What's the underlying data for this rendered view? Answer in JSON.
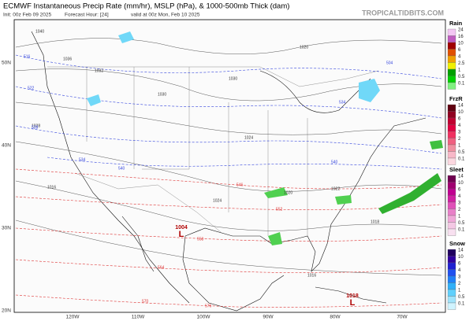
{
  "header": {
    "title": "ECMWF Instantaneous Precip Rate (mm/hr), MSLP (hPa), & 1000-500mb Thick (dam)",
    "init": "Init: 00z Feb 09 2025",
    "forecast_hour": "Forecast Hour: [24]",
    "valid": "valid at 00z Mon, Feb 10 2025",
    "site": "TROPICALTIDBITS.COM"
  },
  "map": {
    "lat_labels": [
      "50N",
      "40N",
      "30N",
      "20N"
    ],
    "lon_labels": [
      "120W",
      "110W",
      "100W",
      "90W",
      "80W",
      "70W"
    ],
    "isobar_labels": [
      "1040",
      "1036",
      "1032",
      "1030",
      "1028",
      "1024",
      "1020",
      "1016",
      "1022",
      "1018",
      "1024",
      "1030",
      "1020",
      "1016"
    ],
    "thickness_labels": [
      "516",
      "522",
      "528",
      "534",
      "540",
      "546",
      "552",
      "558",
      "564",
      "570",
      "576",
      "504",
      "534",
      "540"
    ],
    "lows": [
      {
        "symbol": "L",
        "value": "1004"
      },
      {
        "symbol": "L",
        "value": "1018"
      }
    ]
  },
  "legend": [
    {
      "title": "Rain",
      "ticks": [
        "24",
        "16",
        "10",
        "6",
        "4",
        "2.5",
        "1",
        "0.5",
        "0.1"
      ],
      "colors": [
        "#f3c6f3",
        "#c05cc0",
        "#a00000",
        "#e05000",
        "#f0a000",
        "#f0f000",
        "#00a000",
        "#00d000",
        "#80f080"
      ]
    },
    {
      "title": "FrzR",
      "ticks": [
        "14",
        "10",
        "6",
        "4",
        "3",
        "2",
        "1",
        "0.5",
        "0.1"
      ],
      "colors": [
        "#600010",
        "#900020",
        "#c00030",
        "#e00040",
        "#f03060",
        "#f06080",
        "#f090a0",
        "#f8b8c8",
        "#fcd8e0"
      ]
    },
    {
      "title": "Sleet",
      "ticks": [
        "14",
        "10",
        "6",
        "4",
        "3",
        "2",
        "1",
        "0.5",
        "0.1"
      ],
      "colors": [
        "#700050",
        "#a00070",
        "#c00090",
        "#d020a0",
        "#e050b8",
        "#e880c8",
        "#f0a8d8",
        "#f4c8e4",
        "#f8e0f0"
      ]
    },
    {
      "title": "Snow",
      "ticks": [
        "14",
        "10",
        "6",
        "4",
        "3",
        "2",
        "1",
        "0.5",
        "0.1"
      ],
      "colors": [
        "#200060",
        "#3000a0",
        "#2020d0",
        "#2050f0",
        "#2080f8",
        "#30b0f8",
        "#60d0fc",
        "#a0e4fc",
        "#d0f4ff"
      ]
    }
  ]
}
